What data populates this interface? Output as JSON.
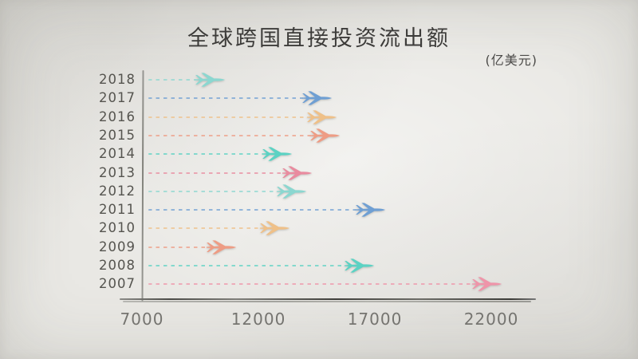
{
  "title": "全球跨国直接投资流出额",
  "unit_label": "(亿美元)",
  "chart_data": {
    "type": "bar",
    "orientation": "horizontal",
    "marker": "airplane",
    "title": "全球跨国直接投资流出额",
    "unit": "亿美元",
    "xlabel": "",
    "ylabel": "",
    "xlim": [
      7000,
      22000
    ],
    "x_ticks": [
      "7000",
      "12000",
      "17000",
      "22000"
    ],
    "x_tick_values": [
      7000,
      12000,
      17000,
      22000
    ],
    "grid": false,
    "legend": false,
    "categories": [
      "2018",
      "2017",
      "2016",
      "2015",
      "2014",
      "2013",
      "2012",
      "2011",
      "2010",
      "2009",
      "2008",
      "2007"
    ],
    "values": [
      9900,
      14500,
      14700,
      14850,
      12800,
      13650,
      13400,
      16800,
      12700,
      10400,
      16300,
      21800
    ],
    "rows": [
      {
        "year": "2018",
        "value": 9900,
        "color": "#8bd7d0"
      },
      {
        "year": "2017",
        "value": 14500,
        "color": "#6f9fd3"
      },
      {
        "year": "2016",
        "value": 14700,
        "color": "#efc088"
      },
      {
        "year": "2015",
        "value": 14850,
        "color": "#ee9c84"
      },
      {
        "year": "2014",
        "value": 12800,
        "color": "#5bd2c3"
      },
      {
        "year": "2013",
        "value": 13650,
        "color": "#e98b9f"
      },
      {
        "year": "2012",
        "value": 13400,
        "color": "#8bd7d0"
      },
      {
        "year": "2011",
        "value": 16800,
        "color": "#6f9fd3"
      },
      {
        "year": "2010",
        "value": 12700,
        "color": "#efc088"
      },
      {
        "year": "2009",
        "value": 10400,
        "color": "#ee9c84"
      },
      {
        "year": "2008",
        "value": 16300,
        "color": "#5bd2c3"
      },
      {
        "year": "2007",
        "value": 21800,
        "color": "#ef94a9"
      }
    ]
  }
}
